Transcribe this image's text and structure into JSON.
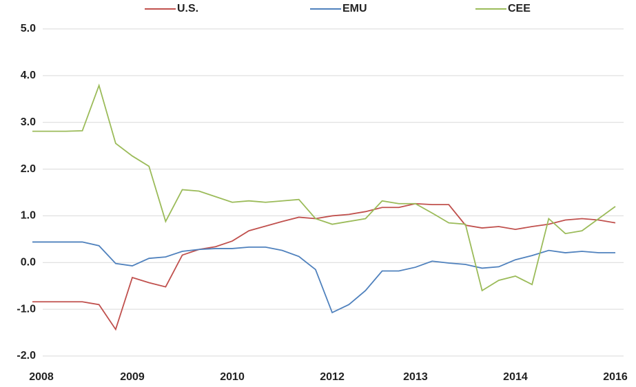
{
  "chart_data": {
    "type": "line",
    "categories": [
      "2008",
      null,
      null,
      null,
      null,
      null,
      "2009",
      null,
      null,
      null,
      null,
      null,
      "2010",
      null,
      null,
      null,
      null,
      null,
      "2012",
      null,
      null,
      null,
      null,
      "2013",
      null,
      null,
      null,
      null,
      null,
      "2014",
      null,
      null,
      null,
      null,
      null,
      "2016"
    ],
    "series": [
      {
        "name": "U.S.",
        "color": "#c0504d",
        "values": [
          -0.84,
          -0.84,
          -0.84,
          -0.84,
          -0.9,
          -1.43,
          -0.32,
          -0.43,
          -0.52,
          0.16,
          0.28,
          0.34,
          0.46,
          0.68,
          0.78,
          0.88,
          0.97,
          0.94,
          1.0,
          1.03,
          1.09,
          1.18,
          1.18,
          1.26,
          1.24,
          1.24,
          0.8,
          0.74,
          0.77,
          0.71,
          0.77,
          0.82,
          0.91,
          0.94,
          0.91,
          0.85
        ]
      },
      {
        "name": "EMU",
        "color": "#4f81bd",
        "values": [
          0.44,
          0.44,
          0.44,
          0.44,
          0.36,
          -0.02,
          -0.07,
          0.09,
          0.12,
          0.24,
          0.28,
          0.3,
          0.3,
          0.33,
          0.33,
          0.26,
          0.13,
          -0.15,
          -1.07,
          -0.9,
          -0.6,
          -0.18,
          -0.18,
          -0.1,
          0.03,
          -0.01,
          -0.04,
          -0.12,
          -0.09,
          0.06,
          0.15,
          0.26,
          0.21,
          0.24,
          0.21,
          0.21
        ]
      },
      {
        "name": "CEE",
        "color": "#9bbb59",
        "values": [
          2.81,
          2.81,
          2.81,
          2.82,
          3.79,
          2.55,
          2.28,
          2.06,
          0.88,
          1.56,
          1.53,
          1.41,
          1.29,
          1.32,
          1.29,
          1.32,
          1.35,
          0.94,
          0.82,
          0.88,
          0.94,
          1.32,
          1.26,
          1.26,
          1.06,
          0.85,
          0.82,
          -0.6,
          -0.38,
          -0.29,
          -0.47,
          0.94,
          0.62,
          0.68,
          0.94,
          1.2
        ]
      }
    ],
    "ylim": [
      -2,
      5
    ],
    "yticks": [
      {
        "value": -2,
        "label": "-2.0"
      },
      {
        "value": -1,
        "label": "-1.0"
      },
      {
        "value": 0,
        "label": "0.0"
      },
      {
        "value": 1,
        "label": "1.0"
      },
      {
        "value": 2,
        "label": "2.0"
      },
      {
        "value": 3,
        "label": "3.0"
      },
      {
        "value": 4,
        "label": "4.0"
      },
      {
        "value": 5,
        "label": "5.0"
      }
    ],
    "grid": true,
    "legend": "top"
  }
}
